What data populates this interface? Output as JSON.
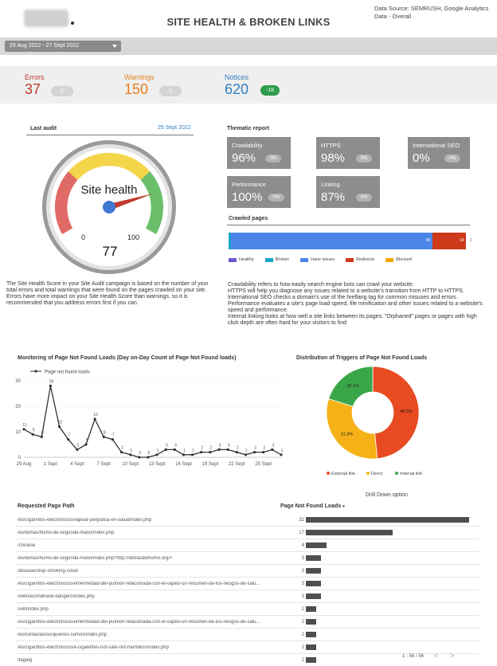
{
  "header": {
    "title": "SITE HEALTH & BROKEN LINKS",
    "source_line1": "Data Source: SEMRUSH, Google Analytics",
    "source_line2": "Data - Overall"
  },
  "date_range": "29 Aug 2022 - 27 Sept 2022",
  "kpis": {
    "errors": {
      "label": "Errors",
      "value": "37",
      "delta": "0",
      "color": "#c0392b"
    },
    "warnings": {
      "label": "Warnings",
      "value": "150",
      "delta": "0",
      "color": "#e67e22"
    },
    "notices": {
      "label": "Notices",
      "value": "620",
      "delta": "-18",
      "color": "#2f7fc1",
      "delta_color": "#2e9c4a"
    }
  },
  "last_audit": {
    "label": "Last audit",
    "date": "25 Sept 2022"
  },
  "gauge": {
    "title": "Site health",
    "min": "0",
    "max": "100",
    "value": 77
  },
  "health_description": "The Site Health Score in your Site Audit campaign is based on the number of your total errors and total warnings that were found on the pages crawled on your site. Errors have more impact on your Site Health Score than warnings, so it is recommended that you address errors first if you can.",
  "thematic": {
    "title": "Thematic report",
    "tiles": [
      {
        "label": "Crawlability",
        "value": "96%",
        "delta": "0%"
      },
      {
        "label": "HTTPS",
        "value": "98%",
        "delta": "0%"
      },
      {
        "label": "International SEO",
        "value": "0%",
        "delta": "0%"
      },
      {
        "label": "Performance",
        "value": "100%",
        "delta": "0%"
      },
      {
        "label": "Linking",
        "value": "87%",
        "delta": "0%"
      }
    ]
  },
  "crawled": {
    "title": "Crawled pages",
    "segments": [
      {
        "name": "Healthy",
        "value": 0,
        "color": "#6a5acd"
      },
      {
        "name": "Broken",
        "value": 1,
        "color": "#1aa3c8"
      },
      {
        "name": "Have issues",
        "value": 85,
        "color": "#4a86e8"
      },
      {
        "name": "Redirects",
        "value": 14,
        "color": "#cc3a1a"
      },
      {
        "name": "Blocked",
        "value": 0,
        "color": "#f4a300"
      }
    ],
    "label_have_issues": "85",
    "label_redirects": "14",
    "label_blocked": "0"
  },
  "thematic_description": [
    "Crawlability refers to how easily search engine bots can crawl your website.",
    "HTTPS will help you diagnose any issues related to a website's transition from HTTP to HTTPS.",
    "International SEO checks a domain's use of the hreflang tag for common misuses and errors.",
    "Performance evaluates a site's page load speed, file minification and other issues related to a website's speed and performance.",
    "Internal linking looks at how well a site links between its pages: \"Orphaned\" pages or pages with high click depth are often hard for your visitors to find"
  ],
  "line_chart": {
    "title": "Monitoring of Page Not Found Loads (Day on-Day Count of Page Not Found loads)",
    "legend": "Page not found loads"
  },
  "chart_data": [
    {
      "type": "line",
      "title": "Monitoring of Page Not Found Loads (Day on-Day Count of Page Not Found loads)",
      "series": [
        {
          "name": "Page not found loads",
          "values": [
            11,
            9,
            8,
            28,
            12,
            7,
            3,
            5,
            15,
            8,
            7,
            2,
            1,
            0,
            0,
            1,
            3,
            3,
            1,
            1,
            2,
            2,
            3,
            3,
            2,
            1,
            2,
            2,
            3,
            1
          ]
        }
      ],
      "x_ticks": [
        "29 Aug",
        "1 Sept",
        "4 Sept",
        "7 Sept",
        "10 Sept",
        "13 Sept",
        "16 Sept",
        "19 Sept",
        "22 Sept",
        "25 Sept"
      ],
      "y_ticks": [
        "0",
        "10",
        "20",
        "30"
      ],
      "ylim": [
        0,
        30
      ]
    },
    {
      "type": "pie",
      "title": "Distribution of Triggers of Page Not Found Loads",
      "slices": [
        {
          "name": "External link",
          "value": 48.3,
          "label": "48.3%",
          "color": "#e84a22"
        },
        {
          "name": "Direct",
          "value": 31.3,
          "label": "31.3%",
          "color": "#f6b117"
        },
        {
          "name": "Internal link",
          "value": 20.1,
          "label": "20.1%",
          "color": "#3aa64a"
        }
      ]
    }
  ],
  "drill_down": "Drill Down option",
  "table": {
    "col_path": "Requested Page Path",
    "col_count": "Page Not Found Loads",
    "sort_arrow": "▾",
    "max": 32,
    "rows": [
      {
        "path": "/es/cigarrillos-electronicos/vapear-perjudica-en-salud/index.php",
        "count": "32"
      },
      {
        "path": "/es/temas/humo-de-segunda-mano/index.php",
        "count": "17"
      },
      {
        "path": "/chinese",
        "count": "4"
      },
      {
        "path": "/es/temas/humo-de-segunda-mano/index.php?http://detrasdelhumo.org/+",
        "count": "3"
      },
      {
        "path": "/disease/stop-smoking-covid",
        "count": "3"
      },
      {
        "path": "/es/cigarrillos-electronicos/enfermedad-del-pulmon-relacionada-con-el-vapeo-un-resumen-de-los-riesgos-de-salu...",
        "count": "3"
      },
      {
        "path": "/viet/secondhand-dangers/index.php",
        "count": "3"
      },
      {
        "path": "/viet/index.php",
        "count": "2"
      },
      {
        "path": "/es/cigarrillos-electronicos/enfermedad-del-pulmon-relacionada-con-el-vapeo-un-resumen-de-los-riesgos-de-salu...",
        "count": "2"
      },
      {
        "path": "/es/contactanos/quienes-somos/index.php",
        "count": "2"
      },
      {
        "path": "/es/cigarrillos-electronicos/e-cigarettes-not-safe-not-harmless/index.php",
        "count": "2"
      },
      {
        "path": "/tagalg",
        "count": "2"
      }
    ]
  },
  "pagination": {
    "text": "1 - 56 / 56",
    "prev": "<",
    "next": ">"
  }
}
